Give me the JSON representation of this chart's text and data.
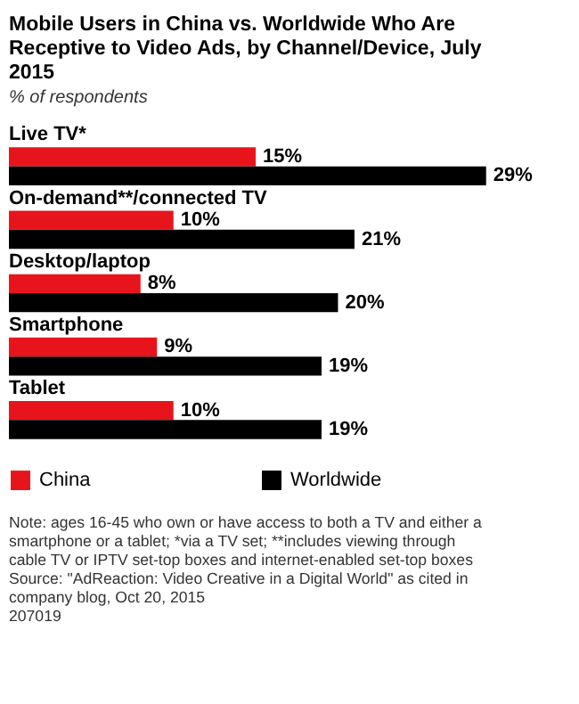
{
  "chart_data": {
    "type": "bar",
    "orientation": "horizontal",
    "title": "Mobile Users in China vs. Worldwide Who Are Receptive to Video Ads, by Channel/Device, July 2015",
    "subtitle": "% of respondents",
    "categories": [
      "Live TV*",
      "On-demand**/connected TV",
      "Desktop/laptop",
      "Smartphone",
      "Tablet"
    ],
    "series": [
      {
        "name": "China",
        "color": "#e8141c",
        "values": [
          15,
          10,
          8,
          9,
          10
        ],
        "value_labels": [
          "15%",
          "10%",
          "8%",
          "9%",
          "10%"
        ]
      },
      {
        "name": "Worldwide",
        "color": "#000000",
        "values": [
          29,
          21,
          20,
          19,
          19
        ],
        "value_labels": [
          "29%",
          "21%",
          "20%",
          "19%",
          "19%"
        ]
      }
    ],
    "legend": "bottom",
    "annotations": [
      "Note: ages 16-45 who own or have access to both a TV and either a smartphone or a tablet; *via a TV set; **includes viewing through cable TV or IPTV set-top boxes and internet-enabled set-top boxes",
      "Source: \"AdReaction: Video Creative in a Digital World\" as cited in company blog, Oct 20, 2015",
      "207019"
    ]
  }
}
